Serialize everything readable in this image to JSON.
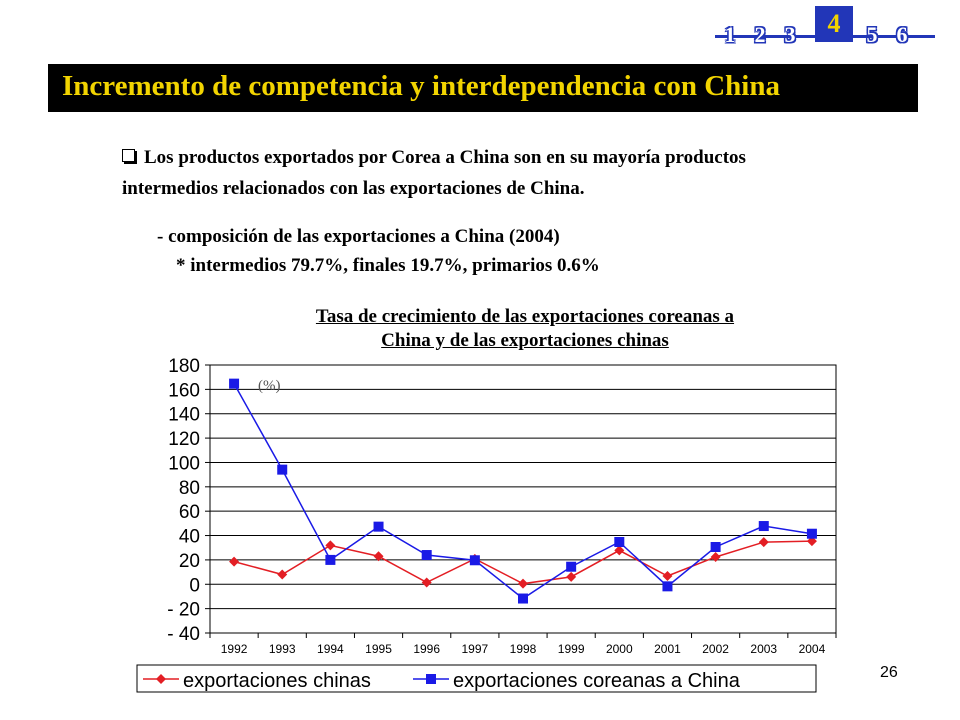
{
  "nav": {
    "items": [
      "1",
      "2",
      "3",
      "4",
      "5",
      "6"
    ],
    "current": "4",
    "accent": "#2236b8",
    "current_text_color": "#f2d400"
  },
  "header": {
    "title": "Incremento de competencia y interdependencia con China",
    "title_color": "#f2d400",
    "bar_color": "#000000"
  },
  "body": {
    "bullet": "Los productos exportados por Corea a China son en su mayoría productos",
    "bullet_line2": "intermedios relacionados con las exportaciones de China.",
    "sub1": "- composición de las exportaciones a China (2004)",
    "sub2": "* intermedios 79.7%, finales 19.7%, primarios 0.6%"
  },
  "chart_data": {
    "type": "line",
    "title_line1": "Tasa de crecimiento de las exportaciones coreanas a",
    "title_line2": "China y de las exportaciones chinas",
    "unit_label": "(%)",
    "categories": [
      "1992",
      "1993",
      "1994",
      "1995",
      "1996",
      "1997",
      "1998",
      "1999",
      "2000",
      "2001",
      "2002",
      "2003",
      "2004"
    ],
    "ylim": [
      -40,
      180
    ],
    "yticks": [
      "180",
      "160",
      "140",
      "120",
      "100",
      "80",
      "60",
      "40",
      "20",
      "0",
      "- 20",
      "- 40"
    ],
    "ytick_values": [
      180,
      160,
      140,
      120,
      100,
      80,
      60,
      40,
      20,
      0,
      -20,
      -40
    ],
    "grid": true,
    "legend_position": "bottom",
    "series": [
      {
        "name": "exportaciones chinas",
        "color": "#e31e24",
        "marker": "diamond",
        "values": [
          18.6,
          8.0,
          31.9,
          23.0,
          1.5,
          20.9,
          0.5,
          6.1,
          27.8,
          6.8,
          22.4,
          34.6,
          35.4
        ]
      },
      {
        "name": "exportaciones coreanas a China",
        "color": "#1a1ae6",
        "marker": "square",
        "values": [
          164.7,
          94.1,
          20.0,
          47.3,
          24.0,
          19.7,
          -11.7,
          14.4,
          34.7,
          -1.7,
          30.6,
          47.8,
          41.5
        ]
      }
    ]
  },
  "footer": {
    "page_number": "26"
  }
}
